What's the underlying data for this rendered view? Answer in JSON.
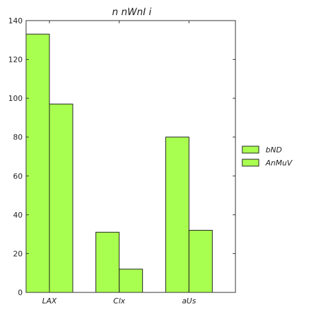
{
  "chart_data": {
    "type": "bar",
    "title": "n  nWnI i",
    "xlabel": "",
    "ylabel": "",
    "categories": [
      "LAX",
      "Clx",
      "aUs"
    ],
    "series": [
      {
        "name": "bND",
        "values": [
          133,
          31,
          80
        ],
        "color": "#a9ff4f"
      },
      {
        "name": "AnMuV",
        "values": [
          97,
          12,
          32
        ],
        "color": "#a9ff4f"
      }
    ],
    "ylim": [
      0,
      140
    ],
    "yticks": [
      0,
      20,
      40,
      60,
      80,
      100,
      120,
      140
    ],
    "grid": false,
    "legend_position": "right"
  }
}
